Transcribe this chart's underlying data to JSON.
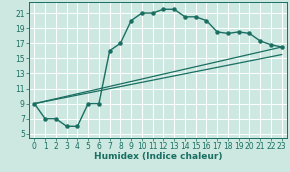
{
  "title": "",
  "xlabel": "Humidex (Indice chaleur)",
  "bg_color": "#cce8e0",
  "line_color": "#1a6e62",
  "grid_color": "#ffffff",
  "xlim": [
    -0.5,
    23.5
  ],
  "ylim": [
    4.5,
    22.5
  ],
  "xticks": [
    0,
    1,
    2,
    3,
    4,
    5,
    6,
    7,
    8,
    9,
    10,
    11,
    12,
    13,
    14,
    15,
    16,
    17,
    18,
    19,
    20,
    21,
    22,
    23
  ],
  "yticks": [
    5,
    7,
    9,
    11,
    13,
    15,
    17,
    19,
    21
  ],
  "line1_x": [
    0,
    1,
    2,
    3,
    4,
    5,
    6,
    7,
    8,
    9,
    10,
    11,
    12,
    13,
    14,
    15,
    16,
    17,
    18,
    19,
    20,
    21,
    22,
    23
  ],
  "line1_y": [
    9,
    7,
    7,
    6,
    6,
    9,
    9,
    16,
    17,
    20,
    21,
    21,
    21.5,
    21.5,
    20.5,
    20.5,
    20,
    18.5,
    18.3,
    18.5,
    18.3,
    17.3,
    16.8,
    16.5
  ],
  "line2_x": [
    0,
    23
  ],
  "line2_y": [
    9,
    16.5
  ],
  "line3_x": [
    0,
    23
  ],
  "line3_y": [
    9,
    15.5
  ],
  "xlabel_fontsize": 6.5,
  "tick_fontsize": 5.5
}
